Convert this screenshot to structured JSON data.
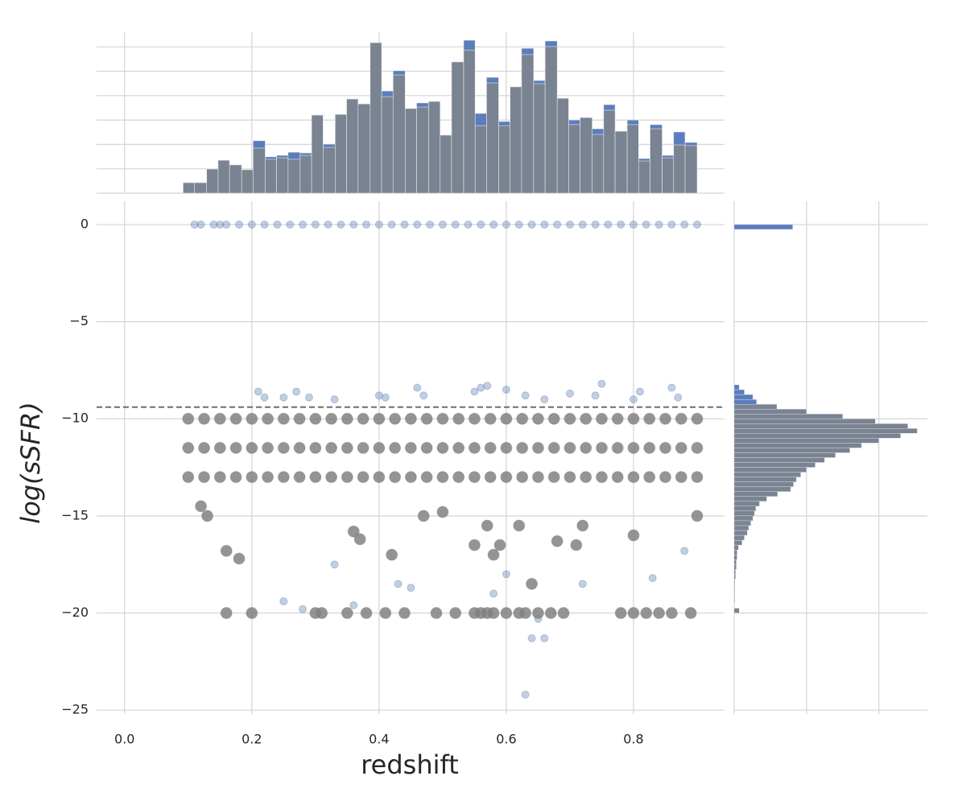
{
  "chart_data": [
    {
      "type": "histogram",
      "grid": true,
      "show_tick_labels": false,
      "xlim": [
        -0.044,
        0.943
      ],
      "ylim": [
        0,
        660
      ],
      "xticks": [
        0,
        0.2,
        0.4,
        0.6,
        0.8
      ],
      "yticks": [
        0,
        100,
        200,
        300,
        400,
        500,
        600
      ],
      "bins": [
        0.092,
        0.11,
        0.129,
        0.147,
        0.165,
        0.184,
        0.202,
        0.221,
        0.239,
        0.257,
        0.276,
        0.294,
        0.312,
        0.331,
        0.349,
        0.367,
        0.386,
        0.404,
        0.422,
        0.441,
        0.459,
        0.478,
        0.496,
        0.514,
        0.533,
        0.551,
        0.569,
        0.588,
        0.606,
        0.624,
        0.643,
        0.661,
        0.68,
        0.698,
        0.716,
        0.735,
        0.753,
        0.771,
        0.79,
        0.808,
        0.826,
        0.845,
        0.863,
        0.881,
        0.9
      ],
      "series": [
        {
          "color": "#5b7dbd",
          "values": [
            43,
            43,
            99,
            135,
            116,
            96,
            215,
            149,
            155,
            168,
            165,
            320,
            201,
            323,
            386,
            366,
            617,
            419,
            502,
            347,
            370,
            376,
            238,
            538,
            627,
            327,
            475,
            294,
            436,
            594,
            462,
            624,
            389,
            300,
            310,
            264,
            363,
            254,
            300,
            142,
            281,
            155,
            251,
            208
          ]
        },
        {
          "color": "#7a8392",
          "values": [
            43,
            43,
            99,
            135,
            116,
            96,
            185,
            139,
            145,
            139,
            155,
            320,
            188,
            323,
            386,
            366,
            617,
            396,
            485,
            347,
            353,
            376,
            238,
            538,
            587,
            277,
            452,
            277,
            436,
            568,
            449,
            601,
            389,
            281,
            310,
            241,
            340,
            254,
            281,
            132,
            264,
            145,
            198,
            195
          ]
        }
      ]
    },
    {
      "type": "scatter",
      "grid": true,
      "alpha": 0.35,
      "xlabel": "redshift",
      "ylabel": "log(sSFR)",
      "xlim": [
        -0.044,
        0.943
      ],
      "ylim": [
        -25.2,
        1.2
      ],
      "xticks": [
        {
          "value": 0,
          "label": "0.0"
        },
        0.2,
        0.4,
        0.6,
        0.8
      ],
      "yticks": [
        {
          "value": -25,
          "label": "−25"
        },
        {
          "value": -20,
          "label": "−20"
        },
        {
          "value": -15,
          "label": "−15"
        },
        {
          "value": -10,
          "label": "−10"
        },
        {
          "value": -5,
          "label": "−5"
        },
        0
      ],
      "hline": {
        "value": -9.4,
        "linestyle": "dashed",
        "color": "#6e6e6e"
      },
      "series": [
        {
          "color": "#4c72b0",
          "x": [
            0.11,
            0.12,
            0.14,
            0.15,
            0.16,
            0.18,
            0.2,
            0.22,
            0.24,
            0.26,
            0.28,
            0.3,
            0.32,
            0.34,
            0.36,
            0.38,
            0.4,
            0.42,
            0.44,
            0.46,
            0.48,
            0.5,
            0.52,
            0.54,
            0.56,
            0.58,
            0.6,
            0.62,
            0.64,
            0.66,
            0.68,
            0.7,
            0.72,
            0.74,
            0.76,
            0.78,
            0.8,
            0.82,
            0.84,
            0.86,
            0.88,
            0.9,
            0.21,
            0.22,
            0.25,
            0.27,
            0.29,
            0.33,
            0.4,
            0.41,
            0.46,
            0.47,
            0.55,
            0.56,
            0.57,
            0.6,
            0.63,
            0.66,
            0.7,
            0.75,
            0.74,
            0.8,
            0.86,
            0.87,
            0.81,
            0.43,
            0.45,
            0.58,
            0.64,
            0.66,
            0.63,
            0.33,
            0.28,
            0.25,
            0.65,
            0.36,
            0.6,
            0.72,
            0.83,
            0.88
          ],
          "values": [
            0,
            0,
            0,
            0,
            0,
            0,
            0,
            0,
            0,
            0,
            0,
            0,
            0,
            0,
            0,
            0,
            0,
            0,
            0,
            0,
            0,
            0,
            0,
            0,
            0,
            0,
            0,
            0,
            0,
            0,
            0,
            0,
            0,
            0,
            0,
            0,
            0,
            0,
            0,
            0,
            0,
            0,
            -8.6,
            -8.9,
            -8.9,
            -8.6,
            -8.9,
            -9.0,
            -8.8,
            -8.9,
            -8.4,
            -8.8,
            -8.6,
            -8.4,
            -8.3,
            -8.5,
            -8.8,
            -9.0,
            -8.7,
            -8.2,
            -8.8,
            -9.0,
            -8.4,
            -8.9,
            -8.6,
            -18.5,
            -18.7,
            -19.0,
            -21.3,
            -21.3,
            -24.2,
            -17.5,
            -19.8,
            -19.4,
            -20.3,
            -19.6,
            -18.0,
            -18.5,
            -18.2,
            -16.8
          ]
        },
        {
          "color": "#808080",
          "x": [
            0.1,
            0.125,
            0.15,
            0.175,
            0.2,
            0.225,
            0.25,
            0.275,
            0.3,
            0.325,
            0.35,
            0.375,
            0.4,
            0.425,
            0.45,
            0.475,
            0.5,
            0.525,
            0.55,
            0.575,
            0.6,
            0.625,
            0.65,
            0.675,
            0.7,
            0.725,
            0.75,
            0.775,
            0.8,
            0.825,
            0.85,
            0.875,
            0.9,
            0.1,
            0.125,
            0.15,
            0.175,
            0.2,
            0.225,
            0.25,
            0.275,
            0.3,
            0.325,
            0.35,
            0.375,
            0.4,
            0.425,
            0.45,
            0.475,
            0.5,
            0.525,
            0.55,
            0.575,
            0.6,
            0.625,
            0.65,
            0.675,
            0.7,
            0.725,
            0.75,
            0.775,
            0.8,
            0.825,
            0.85,
            0.875,
            0.9,
            0.1,
            0.125,
            0.15,
            0.175,
            0.2,
            0.225,
            0.25,
            0.275,
            0.3,
            0.325,
            0.35,
            0.375,
            0.4,
            0.425,
            0.45,
            0.475,
            0.5,
            0.525,
            0.55,
            0.575,
            0.6,
            0.625,
            0.65,
            0.675,
            0.7,
            0.725,
            0.75,
            0.775,
            0.8,
            0.825,
            0.85,
            0.875,
            0.9,
            0.16,
            0.2,
            0.3,
            0.31,
            0.35,
            0.38,
            0.41,
            0.44,
            0.49,
            0.52,
            0.55,
            0.56,
            0.57,
            0.58,
            0.6,
            0.62,
            0.63,
            0.65,
            0.67,
            0.69,
            0.78,
            0.8,
            0.82,
            0.84,
            0.86,
            0.89,
            0.36,
            0.37,
            0.58,
            0.59,
            0.57,
            0.71,
            0.72,
            0.9,
            0.13,
            0.12,
            0.47,
            0.5,
            0.62,
            0.68,
            0.16,
            0.18,
            0.42,
            0.64,
            0.55,
            0.8
          ],
          "values": [
            -10,
            -10,
            -10,
            -10,
            -10,
            -10,
            -10,
            -10,
            -10,
            -10,
            -10,
            -10,
            -10,
            -10,
            -10,
            -10,
            -10,
            -10,
            -10,
            -10,
            -10,
            -10,
            -10,
            -10,
            -10,
            -10,
            -10,
            -10,
            -10,
            -10,
            -10,
            -10,
            -10,
            -11.5,
            -11.5,
            -11.5,
            -11.5,
            -11.5,
            -11.5,
            -11.5,
            -11.5,
            -11.5,
            -11.5,
            -11.5,
            -11.5,
            -11.5,
            -11.5,
            -11.5,
            -11.5,
            -11.5,
            -11.5,
            -11.5,
            -11.5,
            -11.5,
            -11.5,
            -11.5,
            -11.5,
            -11.5,
            -11.5,
            -11.5,
            -11.5,
            -11.5,
            -11.5,
            -11.5,
            -11.5,
            -11.5,
            -13,
            -13,
            -13,
            -13,
            -13,
            -13,
            -13,
            -13,
            -13,
            -13,
            -13,
            -13,
            -13,
            -13,
            -13,
            -13,
            -13,
            -13,
            -13,
            -13,
            -13,
            -13,
            -13,
            -13,
            -13,
            -13,
            -13,
            -13,
            -13,
            -13,
            -13,
            -13,
            -13,
            -20,
            -20,
            -20,
            -20,
            -20,
            -20,
            -20,
            -20,
            -20,
            -20,
            -20,
            -20,
            -20,
            -20,
            -20,
            -20,
            -20,
            -20,
            -20,
            -20,
            -20,
            -20,
            -20,
            -20,
            -20,
            -20,
            -15.8,
            -16.2,
            -17,
            -16.5,
            -15.5,
            -16.5,
            -15.5,
            -15,
            -15,
            -14.5,
            -15,
            -14.8,
            -15.5,
            -16.3,
            -16.8,
            -17.2,
            -17,
            -18.5,
            -16.5,
            -16
          ]
        }
      ]
    },
    {
      "type": "histogram",
      "orientation": "horizontal",
      "grid": true,
      "show_tick_labels": false,
      "xlim": [
        0,
        267
      ],
      "ylim": [
        -25.2,
        1.2
      ],
      "xticks": [
        0,
        100,
        200
      ],
      "yticks": [
        -25,
        -20,
        -15,
        -10,
        -5,
        0
      ],
      "bins": [
        -20.5,
        -20.25,
        -20,
        -19.75,
        -19.5,
        -19.25,
        -19,
        -18.75,
        -18.5,
        -18.25,
        -18,
        -17.75,
        -17.5,
        -17.25,
        -17,
        -16.75,
        -16.5,
        -16.25,
        -16,
        -15.75,
        -15.5,
        -15.25,
        -15,
        -14.75,
        -14.5,
        -14.25,
        -14,
        -13.75,
        -13.5,
        -13.25,
        -13,
        -12.75,
        -12.5,
        -12.25,
        -12,
        -11.75,
        -11.5,
        -11.25,
        -11,
        -10.75,
        -10.5,
        -10.25,
        -10,
        -9.75,
        -9.5,
        -9.25,
        -9,
        -8.75,
        -8.5,
        -8.25,
        -8,
        -7.75,
        -7.5,
        -7.25,
        -7,
        -6.75,
        -6.5,
        -6.25,
        -6,
        -5.75,
        -5.5,
        -5.25,
        -5,
        -4.75,
        -4.5,
        -4.25,
        -4,
        -3.75,
        -3.5,
        -3.25,
        -3,
        -2.75,
        -2.5,
        -2.25,
        -2,
        -1.75,
        -1.5,
        -1.25,
        -1,
        -0.75,
        -0.5,
        -0.25,
        0,
        0.25
      ],
      "series": [
        {
          "color": "#5b7dbd",
          "values": [
            0,
            0,
            7,
            0,
            1,
            1,
            1,
            1,
            1,
            2,
            2,
            3,
            3,
            4,
            4,
            6,
            11,
            14,
            18,
            20,
            23,
            26,
            28,
            30,
            35,
            45,
            60,
            78,
            82,
            86,
            92,
            100,
            112,
            125,
            140,
            160,
            176,
            200,
            230,
            253,
            240,
            195,
            150,
            100,
            59,
            31,
            26,
            14,
            7,
            0,
            0,
            0,
            0,
            0,
            0,
            0,
            0,
            0,
            0,
            0,
            0,
            0,
            0,
            0,
            0,
            0,
            0,
            0,
            0,
            0,
            0,
            0,
            0,
            0,
            0,
            0,
            0,
            0,
            0,
            0,
            0,
            81,
            0
          ]
        },
        {
          "color": "#7a8392",
          "values": [
            0,
            0,
            7,
            0,
            1,
            1,
            1,
            1,
            1,
            2,
            2,
            3,
            3,
            4,
            4,
            6,
            11,
            14,
            18,
            20,
            23,
            26,
            28,
            30,
            35,
            45,
            60,
            78,
            82,
            86,
            92,
            100,
            112,
            125,
            140,
            160,
            176,
            200,
            230,
            253,
            240,
            195,
            150,
            100,
            59,
            0,
            0,
            0,
            0,
            0,
            0,
            0,
            0,
            0,
            0,
            0,
            0,
            0,
            0,
            0,
            0,
            0,
            0,
            0,
            0,
            0,
            0,
            0,
            0,
            0,
            0,
            0,
            0,
            0,
            0,
            0,
            0,
            0,
            0,
            0,
            0,
            0,
            0
          ]
        }
      ]
    }
  ]
}
